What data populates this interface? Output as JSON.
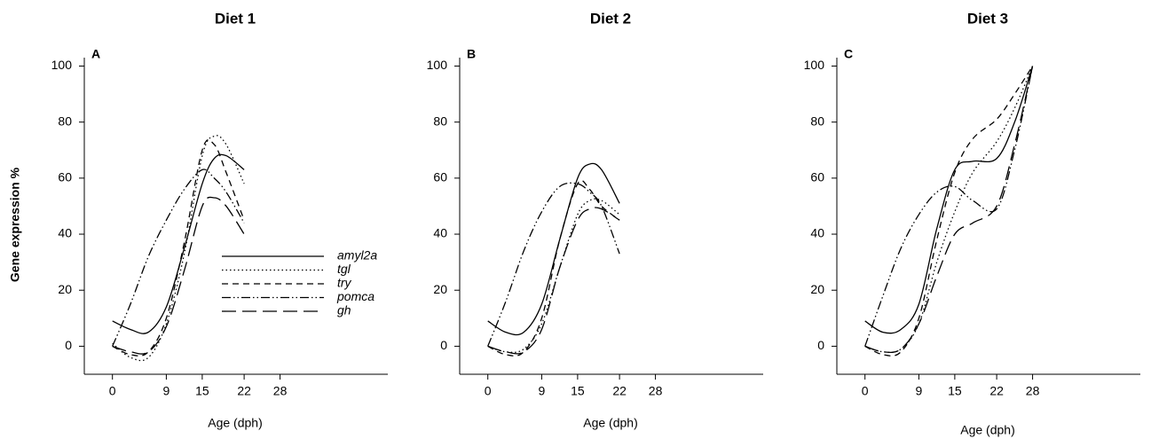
{
  "chart_data": [
    {
      "type": "line",
      "title": "Diet 1",
      "panel_label": "A",
      "xlabel": "Age (dph)",
      "ylabel": "Gene expression %",
      "x": [
        0,
        3,
        6,
        9,
        12,
        15,
        17,
        19,
        22
      ],
      "xlim": [
        -4.7,
        46
      ],
      "xticks": [
        0,
        9,
        15,
        22,
        28
      ],
      "ylim": [
        -10,
        103
      ],
      "yticks": [
        0,
        20,
        40,
        60,
        80,
        100
      ],
      "legend": "center",
      "series": [
        {
          "name": "amyl2a",
          "color": "#000000",
          "dash": "solid",
          "values": [
            9,
            6,
            5,
            14,
            35,
            58,
            67,
            68,
            63
          ]
        },
        {
          "name": "tgl",
          "color": "#000000",
          "dash": "dotted",
          "values": [
            1,
            -4,
            -4,
            8,
            33,
            68,
            75,
            72,
            58
          ]
        },
        {
          "name": "try",
          "color": "#000000",
          "dash": "dashed",
          "values": [
            0,
            -3,
            -2,
            10,
            37,
            70,
            72,
            62,
            45
          ]
        },
        {
          "name": "pomca",
          "color": "#000000",
          "dash": "dashdotdot",
          "values": [
            0,
            15,
            32,
            45,
            56,
            63,
            60,
            55,
            44
          ]
        },
        {
          "name": "gh",
          "color": "#000000",
          "dash": "longdash",
          "values": [
            0,
            -2,
            -2,
            7,
            27,
            50,
            53,
            50,
            40
          ]
        }
      ]
    },
    {
      "type": "line",
      "title": "Diet 2",
      "panel_label": "B",
      "xlabel": "Age (dph)",
      "x": [
        0,
        3,
        6,
        9,
        12,
        15,
        17,
        19,
        22
      ],
      "xlim": [
        -4.7,
        46
      ],
      "xticks": [
        0,
        9,
        15,
        22,
        28
      ],
      "ylim": [
        -10,
        103
      ],
      "yticks": [
        0,
        20,
        40,
        60,
        80,
        100
      ],
      "series": [
        {
          "color": "#000000",
          "dash": "solid",
          "values": [
            9,
            5,
            5,
            15,
            38,
            60,
            65,
            63,
            51
          ]
        },
        {
          "color": "#000000",
          "dash": "dotted",
          "values": [
            0,
            -2,
            -1,
            8,
            28,
            47,
            52,
            52,
            47
          ]
        },
        {
          "color": "#000000",
          "dash": "dashed",
          "values": [
            0,
            -3,
            -2,
            10,
            38,
            58,
            56,
            50,
            45
          ]
        },
        {
          "color": "#000000",
          "dash": "dashdotdot",
          "values": [
            0,
            16,
            34,
            48,
            57,
            58,
            55,
            50,
            33
          ]
        },
        {
          "color": "#000000",
          "dash": "longdash",
          "values": [
            0,
            -2,
            -2,
            6,
            28,
            45,
            49,
            49,
            45
          ]
        }
      ]
    },
    {
      "type": "line",
      "title": "Diet 3",
      "panel_label": "C",
      "xlabel": "Age (dph)",
      "x": [
        0,
        3,
        6,
        9,
        12,
        15,
        18,
        22,
        25,
        28
      ],
      "xlim": [
        -4.7,
        46
      ],
      "xticks": [
        0,
        9,
        15,
        22,
        28
      ],
      "ylim": [
        -10,
        103
      ],
      "yticks": [
        0,
        20,
        40,
        60,
        80,
        100
      ],
      "series": [
        {
          "color": "#000000",
          "dash": "solid",
          "values": [
            9,
            5,
            6,
            15,
            42,
            63,
            66,
            67,
            80,
            100
          ]
        },
        {
          "color": "#000000",
          "dash": "dotted",
          "values": [
            0,
            -2,
            -1,
            8,
            30,
            48,
            62,
            73,
            85,
            100
          ]
        },
        {
          "color": "#000000",
          "dash": "dashed",
          "values": [
            0,
            -3,
            -2,
            10,
            38,
            62,
            74,
            81,
            90,
            100
          ]
        },
        {
          "color": "#000000",
          "dash": "dashdotdot",
          "values": [
            0,
            18,
            35,
            47,
            55,
            57,
            52,
            49,
            70,
            100
          ]
        },
        {
          "color": "#000000",
          "dash": "longdash",
          "values": [
            0,
            -2,
            -1,
            8,
            25,
            40,
            44,
            50,
            72,
            100
          ]
        }
      ]
    }
  ]
}
